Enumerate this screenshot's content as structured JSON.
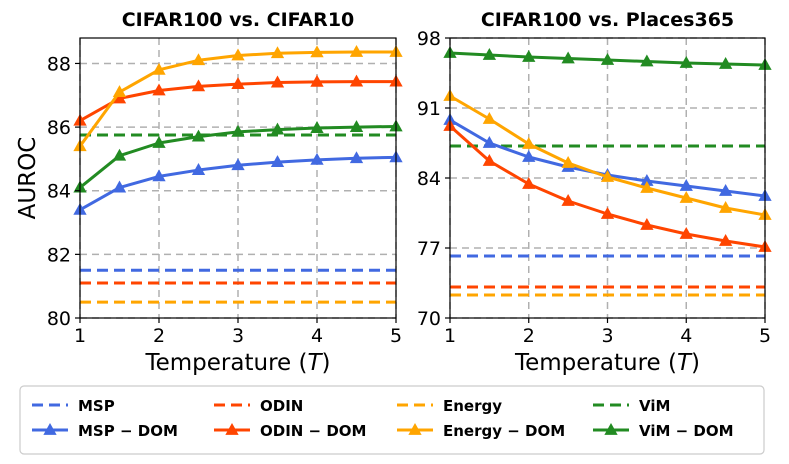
{
  "chart_data": [
    {
      "type": "line",
      "title": "CIFAR100  vs. CIFAR10",
      "xlabel": "Temperature (T)",
      "ylabel": "AUROC",
      "xlim": [
        1,
        5
      ],
      "ylim": [
        80,
        88.8
      ],
      "xticks": [
        "1",
        "2",
        "3",
        "4",
        "5"
      ],
      "yticks": [
        "80",
        "82",
        "84",
        "86",
        "88"
      ],
      "grid": true,
      "baselines": [
        {
          "name": "MSP",
          "value": 81.5,
          "color": "#4169e1"
        },
        {
          "name": "ODIN",
          "value": 81.1,
          "color": "#ff4500"
        },
        {
          "name": "Energy",
          "value": 80.5,
          "color": "#ffa500"
        },
        {
          "name": "ViM",
          "value": 85.75,
          "color": "#228b22"
        }
      ],
      "x": [
        1,
        1.5,
        2,
        2.5,
        3,
        3.5,
        4,
        4.5,
        5
      ],
      "series": [
        {
          "name": "MSP − DOM",
          "color": "#4169e1",
          "values": [
            83.4,
            84.1,
            84.45,
            84.65,
            84.8,
            84.9,
            84.97,
            85.02,
            85.05
          ]
        },
        {
          "name": "ODIN − DOM",
          "color": "#ff4500",
          "values": [
            86.2,
            86.9,
            87.15,
            87.28,
            87.35,
            87.4,
            87.42,
            87.43,
            87.43
          ]
        },
        {
          "name": "Energy − DOM",
          "color": "#ffa500",
          "values": [
            85.4,
            87.1,
            87.8,
            88.1,
            88.25,
            88.32,
            88.35,
            88.36,
            88.36
          ]
        },
        {
          "name": "ViM − DOM",
          "color": "#228b22",
          "values": [
            84.1,
            85.1,
            85.5,
            85.7,
            85.85,
            85.92,
            85.97,
            86.0,
            86.02
          ]
        }
      ]
    },
    {
      "type": "line",
      "title": "CIFAR100  vs. Places365",
      "xlabel": "Temperature (T)",
      "ylabel": "",
      "xlim": [
        1,
        5
      ],
      "ylim": [
        70,
        98
      ],
      "xticks": [
        "1",
        "2",
        "3",
        "4",
        "5"
      ],
      "yticks": [
        "70",
        "77",
        "84",
        "91",
        "98"
      ],
      "grid": true,
      "baselines": [
        {
          "name": "MSP",
          "value": 76.2,
          "color": "#4169e1"
        },
        {
          "name": "ODIN",
          "value": 73.1,
          "color": "#ff4500"
        },
        {
          "name": "Energy",
          "value": 72.3,
          "color": "#ffa500"
        },
        {
          "name": "ViM",
          "value": 87.2,
          "color": "#228b22"
        }
      ],
      "x": [
        1,
        1.5,
        2,
        2.5,
        3,
        3.5,
        4,
        4.5,
        5
      ],
      "series": [
        {
          "name": "MSP − DOM",
          "color": "#4169e1",
          "values": [
            89.8,
            87.5,
            86.1,
            85.1,
            84.3,
            83.7,
            83.2,
            82.7,
            82.2
          ]
        },
        {
          "name": "ODIN − DOM",
          "color": "#ff4500",
          "values": [
            89.2,
            85.7,
            83.4,
            81.7,
            80.4,
            79.3,
            78.4,
            77.7,
            77.1
          ]
        },
        {
          "name": "Energy − DOM",
          "color": "#ffa500",
          "values": [
            92.2,
            89.9,
            87.4,
            85.5,
            84.1,
            83.0,
            82.0,
            81.0,
            80.3
          ]
        },
        {
          "name": "ViM − DOM",
          "color": "#228b22",
          "values": [
            96.5,
            96.3,
            96.1,
            95.95,
            95.8,
            95.65,
            95.5,
            95.4,
            95.3
          ]
        }
      ]
    }
  ],
  "legend": {
    "items": [
      {
        "label": "MSP",
        "style": "dashed",
        "color": "#4169e1"
      },
      {
        "label": "ODIN",
        "style": "dashed",
        "color": "#ff4500"
      },
      {
        "label": "Energy",
        "style": "dashed",
        "color": "#ffa500"
      },
      {
        "label": "ViM",
        "style": "dashed",
        "color": "#228b22"
      },
      {
        "label": "MSP − DOM",
        "style": "marker",
        "color": "#4169e1"
      },
      {
        "label": "ODIN − DOM",
        "style": "marker",
        "color": "#ff4500"
      },
      {
        "label": "Energy − DOM",
        "style": "marker",
        "color": "#ffa500"
      },
      {
        "label": "ViM − DOM",
        "style": "marker",
        "color": "#228b22"
      }
    ]
  }
}
